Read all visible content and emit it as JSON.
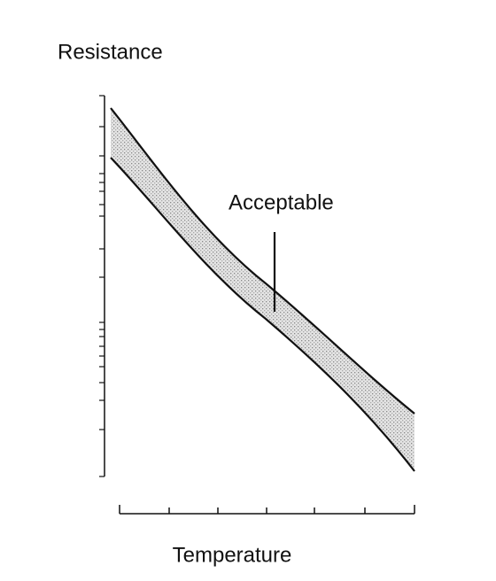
{
  "y_axis": {
    "label": "Resistance"
  },
  "x_axis": {
    "label": "Temperature"
  },
  "annotation": {
    "text": "Acceptable"
  }
}
